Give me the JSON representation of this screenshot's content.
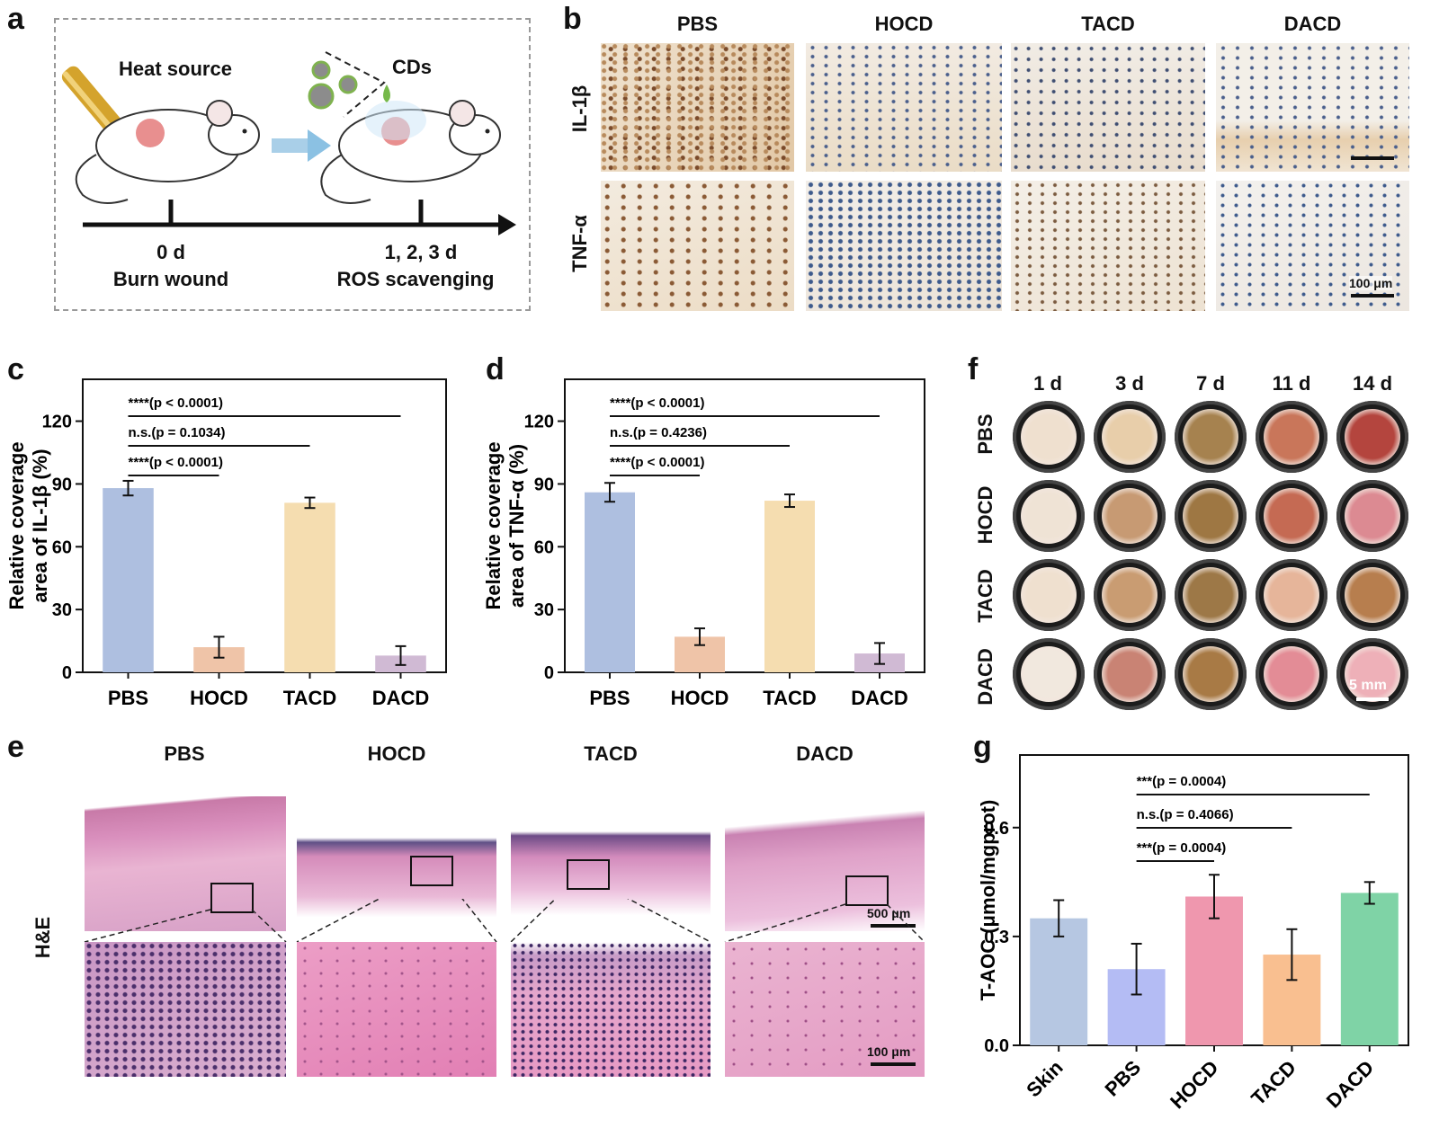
{
  "panel_letters": {
    "a": "a",
    "b": "b",
    "c": "c",
    "d": "d",
    "e": "e",
    "f": "f",
    "g": "g"
  },
  "panel_a": {
    "heat_source": "Heat source",
    "cds": "CDs",
    "t0": "0 d",
    "t0_desc": "Burn wound",
    "t1": "1, 2, 3 d",
    "t1_desc": "ROS scavenging"
  },
  "panel_b": {
    "columns": [
      "PBS",
      "HOCD",
      "TACD",
      "DACD"
    ],
    "rows": [
      "IL-1β",
      "TNF-α"
    ],
    "scale_bar": "100 μm"
  },
  "panel_e": {
    "columns": [
      "PBS",
      "HOCD",
      "TACD",
      "DACD"
    ],
    "row_label": "H&E",
    "scale_top": "500 μm",
    "scale_bottom": "100 μm"
  },
  "panel_f": {
    "columns": [
      "1 d",
      "3 d",
      "7 d",
      "11 d",
      "14 d"
    ],
    "rows": [
      "PBS",
      "HOCD",
      "TACD",
      "DACD"
    ],
    "scale_bar": "5 mm"
  },
  "colors": {
    "PBS": "#aebfe0",
    "HOCD": "#efc4a8",
    "TACD": "#f5ddb0",
    "DACD": "#d0bad4",
    "g_Skin": "#b6c7e2",
    "g_PBS": "#b4bcf4",
    "g_HOCD": "#ef97ae",
    "g_TACD": "#f9bf90",
    "g_DACD": "#7fd3a6"
  },
  "chart_data": [
    {
      "id": "c",
      "type": "bar",
      "categories": [
        "PBS",
        "HOCD",
        "TACD",
        "DACD"
      ],
      "values": [
        88,
        12,
        81,
        8
      ],
      "errors": [
        3.5,
        5,
        2.5,
        4.5
      ],
      "ylabel_line1": "Relative coverage",
      "ylabel_line2": "area of IL-1β (%)",
      "ylim": [
        0,
        140
      ],
      "yticks": [
        0,
        30,
        60,
        90,
        120
      ],
      "annotations": [
        {
          "text": "****(p < 0.0001)",
          "from": 0,
          "to": 3
        },
        {
          "text": "n.s.(p = 0.1034)",
          "from": 0,
          "to": 2
        },
        {
          "text": "****(p < 0.0001)",
          "from": 0,
          "to": 1
        }
      ]
    },
    {
      "id": "d",
      "type": "bar",
      "categories": [
        "PBS",
        "HOCD",
        "TACD",
        "DACD"
      ],
      "values": [
        86,
        17,
        82,
        9
      ],
      "errors": [
        4.5,
        4,
        3,
        5
      ],
      "ylabel_line1": "Relative coverage",
      "ylabel_line2": "area of TNF-α (%)",
      "ylim": [
        0,
        140
      ],
      "yticks": [
        0,
        30,
        60,
        90,
        120
      ],
      "annotations": [
        {
          "text": "****(p < 0.0001)",
          "from": 0,
          "to": 3
        },
        {
          "text": "n.s.(p = 0.4236)",
          "from": 0,
          "to": 2
        },
        {
          "text": "****(p < 0.0001)",
          "from": 0,
          "to": 1
        }
      ]
    },
    {
      "id": "g",
      "type": "bar",
      "categories": [
        "Skin",
        "PBS",
        "HOCD",
        "TACD",
        "DACD"
      ],
      "values": [
        0.35,
        0.21,
        0.41,
        0.25,
        0.42
      ],
      "errors": [
        0.05,
        0.07,
        0.06,
        0.07,
        0.03
      ],
      "ylabel": "T-AOC (μmol/mgprot)",
      "ylim": [
        0,
        0.8
      ],
      "yticks": [
        0.0,
        0.3,
        0.6
      ],
      "yticklabels": [
        "0.0",
        "0.3",
        "0.6"
      ],
      "annotations": [
        {
          "text": "***(p = 0.0004)",
          "from": 1,
          "to": 4
        },
        {
          "text": "n.s.(p = 0.4066)",
          "from": 1,
          "to": 3
        },
        {
          "text": "***(p = 0.0004)",
          "from": 1,
          "to": 2
        }
      ]
    }
  ]
}
